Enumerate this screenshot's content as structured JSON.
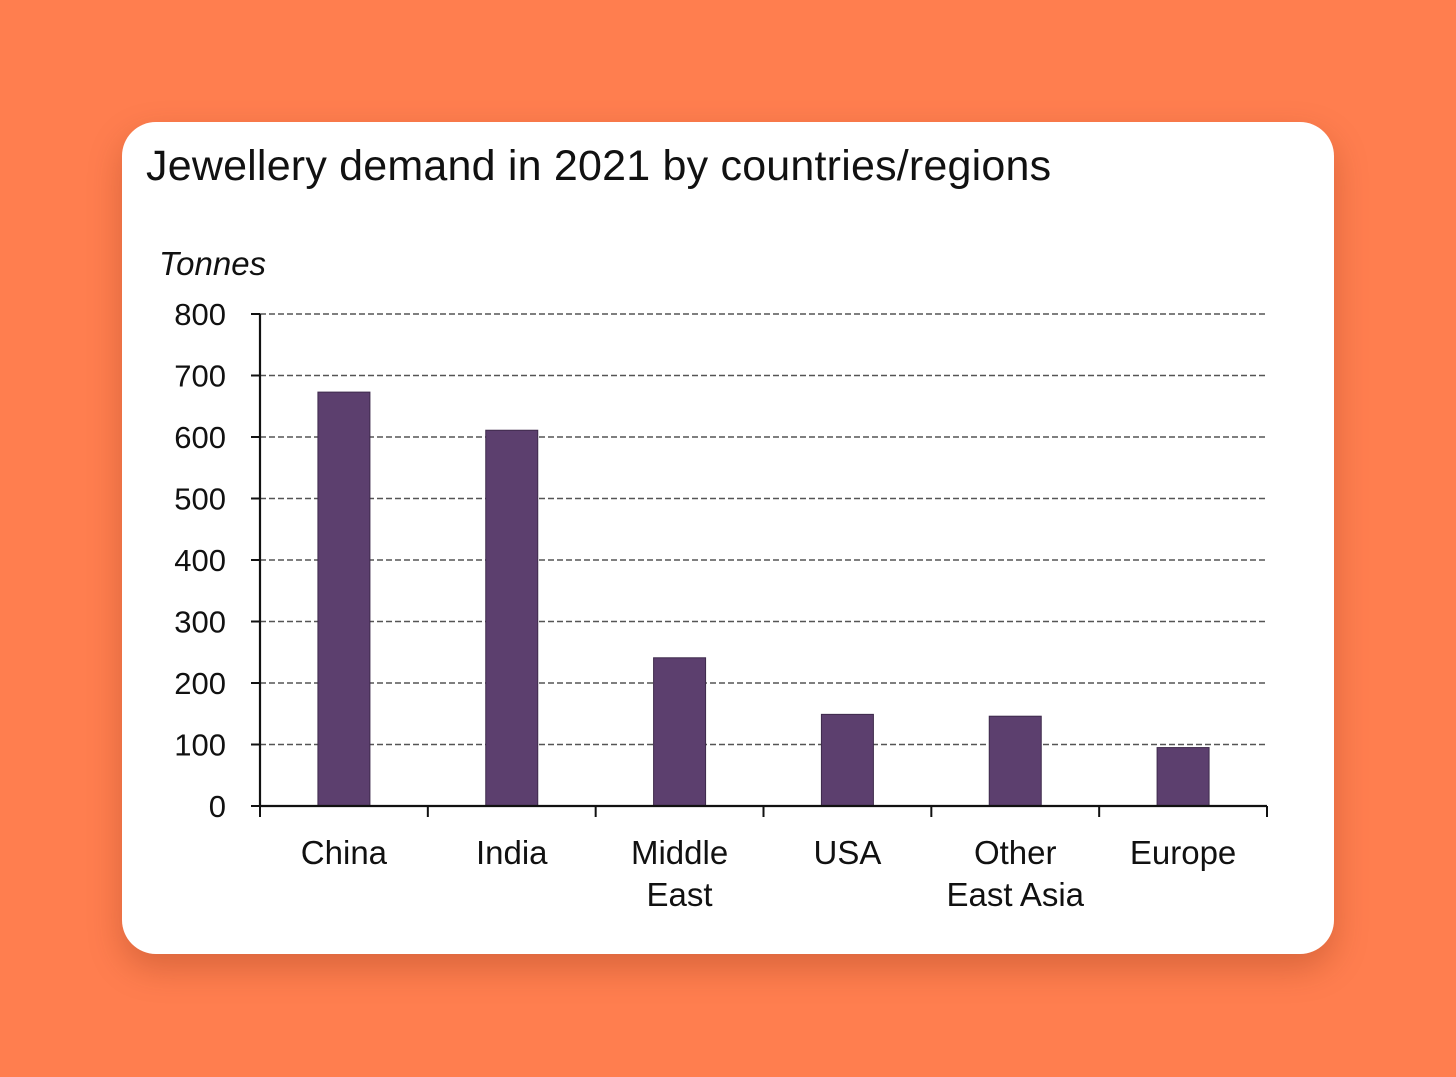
{
  "chart_data": {
    "type": "bar",
    "title": "Jewellery demand in 2021 by countries/regions",
    "xlabel": "",
    "ylabel": "Tonnes",
    "categories": [
      [
        "China"
      ],
      [
        "India"
      ],
      [
        "Middle",
        "East"
      ],
      [
        "USA"
      ],
      [
        "Other",
        "East Asia"
      ],
      [
        "Europe"
      ]
    ],
    "values": [
      673,
      611,
      241,
      149,
      146,
      95
    ],
    "ylim": [
      0,
      800
    ],
    "yticks": [
      "0",
      "100",
      "200",
      "300",
      "400",
      "500",
      "600",
      "700",
      "800"
    ],
    "grid": true,
    "legend": "none",
    "bar_color": "#5C3F6E"
  },
  "colors": {
    "background": "#FF7E4F",
    "card": "#FFFFFF",
    "grid": "#555555",
    "axis": "#111111"
  }
}
